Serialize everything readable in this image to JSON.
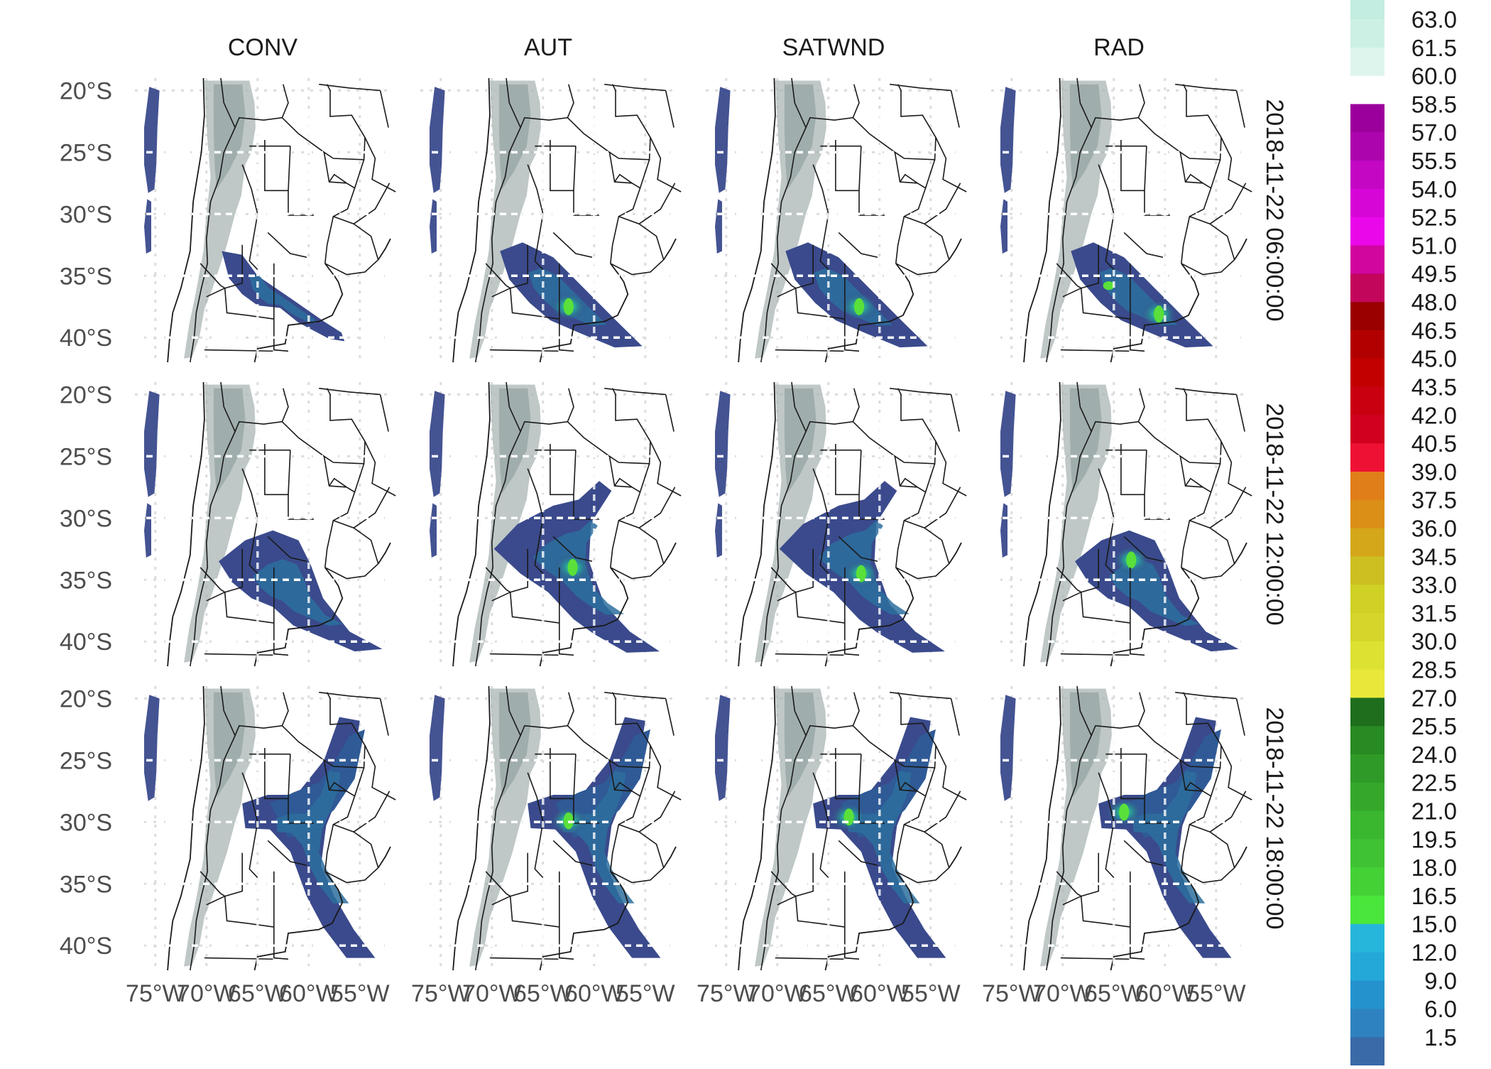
{
  "columns": [
    "CONV",
    "AUT",
    "SATWND",
    "RAD"
  ],
  "rows": [
    "2018-11-22 06:00:00",
    "2018-11-22 12:00:00",
    "2018-11-22 18:00:00"
  ],
  "y_axis_labels": [
    "20°S",
    "25°S",
    "30°S",
    "35°S",
    "40°S"
  ],
  "x_axis_labels": [
    "75°W",
    "70°W",
    "65°W",
    "60°W",
    "55°W"
  ],
  "colorbar": {
    "labels": [
      "63.0",
      "61.5",
      "60.0",
      "58.5",
      "57.0",
      "55.5",
      "54.0",
      "52.5",
      "51.0",
      "49.5",
      "48.0",
      "46.5",
      "45.0",
      "43.5",
      "42.0",
      "40.5",
      "39.0",
      "37.5",
      "36.0",
      "34.5",
      "33.0",
      "31.5",
      "30.0",
      "28.5",
      "27.0",
      "25.5",
      "24.0",
      "22.5",
      "21.0",
      "19.5",
      "18.0",
      "16.5",
      "15.0",
      "12.0",
      "9.0",
      "6.0",
      "1.5"
    ],
    "colors": [
      "#c2ede0",
      "#cdf0e4",
      "#def5ee",
      "#ffffff",
      "#9c009c",
      "#ad05ad",
      "#c307c3",
      "#d606d6",
      "#ea08ea",
      "#d0069e",
      "#c2065c",
      "#9a0000",
      "#b20000",
      "#c20000",
      "#c90010",
      "#d0001e",
      "#ee1133",
      "#e07e19",
      "#dc8f17",
      "#d4a71a",
      "#cdbf22",
      "#cfd125",
      "#d5d52b",
      "#dce132",
      "#e9e83a",
      "#1e6e1e",
      "#288a22",
      "#2f9a27",
      "#35a82b",
      "#3ab62f",
      "#3fc332",
      "#44d136",
      "#4ae63b",
      "#27b6db",
      "#24a8d8",
      "#2493cd",
      "#2f82c0",
      "#3a6aa8"
    ]
  },
  "colors": {
    "terrain": "#a9b4b4",
    "field_low": "#3a4a8c",
    "field_mid": "#2a88a0",
    "field_high": "#5ae03a"
  }
}
